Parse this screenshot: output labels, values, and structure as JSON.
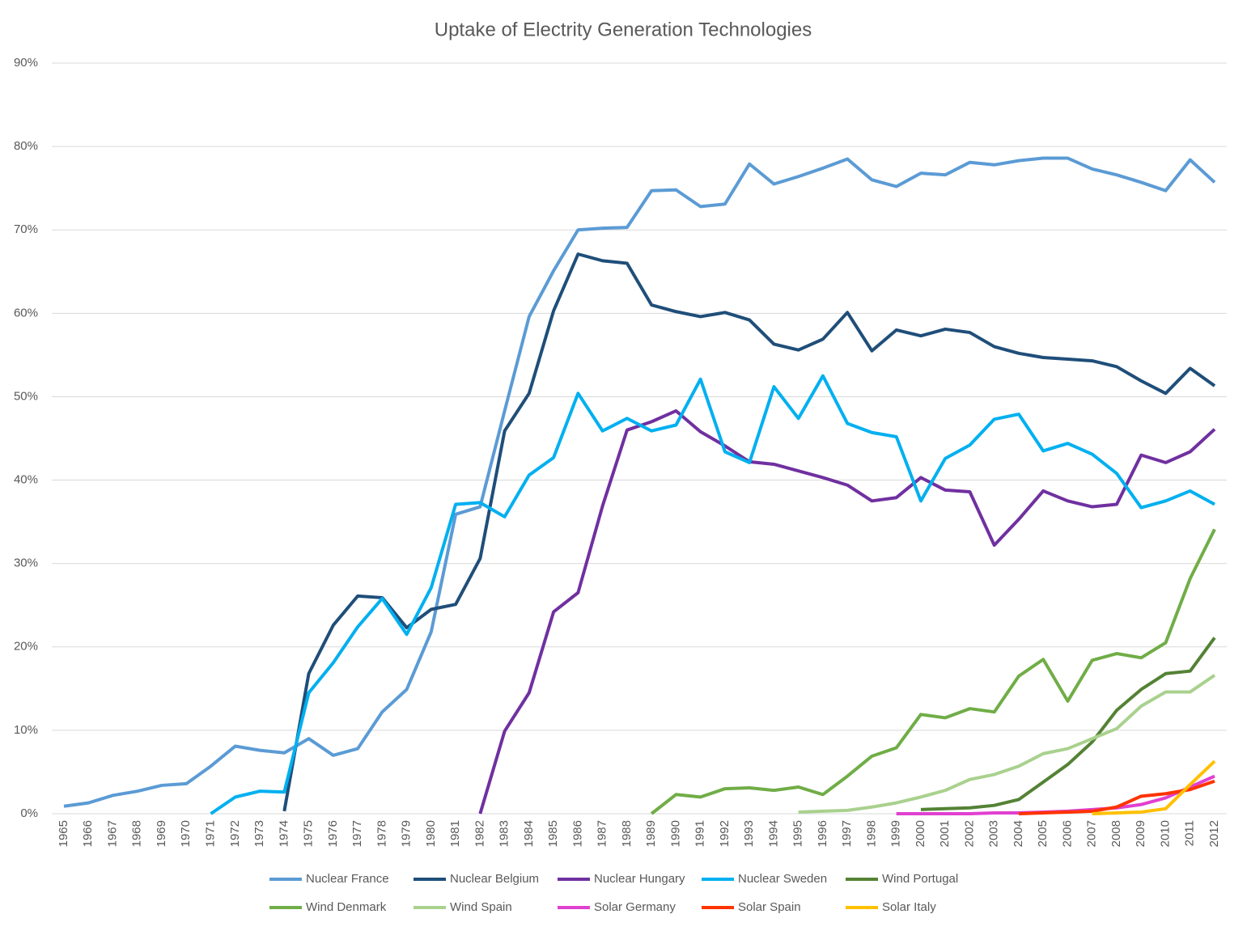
{
  "chart_data": {
    "type": "line",
    "title": "Uptake of Electrity Generation Technologies",
    "categories": [
      "1965",
      "1966",
      "1967",
      "1968",
      "1969",
      "1970",
      "1971",
      "1972",
      "1973",
      "1974",
      "1975",
      "1976",
      "1977",
      "1978",
      "1979",
      "1980",
      "1981",
      "1982",
      "1983",
      "1984",
      "1985",
      "1986",
      "1987",
      "1988",
      "1989",
      "1990",
      "1991",
      "1992",
      "1993",
      "1994",
      "1995",
      "1996",
      "1997",
      "1998",
      "1999",
      "2000",
      "2001",
      "2002",
      "2003",
      "2004",
      "2005",
      "2006",
      "2007",
      "2008",
      "2009",
      "2010",
      "2011",
      "2012"
    ],
    "ylim": [
      0,
      90
    ],
    "yticks": [
      {
        "value": 0,
        "label": "0%"
      },
      {
        "value": 10,
        "label": "10%"
      },
      {
        "value": 20,
        "label": "20%"
      },
      {
        "value": 30,
        "label": "30%"
      },
      {
        "value": 40,
        "label": "40%"
      },
      {
        "value": 50,
        "label": "50%"
      },
      {
        "value": 60,
        "label": "60%"
      },
      {
        "value": 70,
        "label": "70%"
      },
      {
        "value": 80,
        "label": "80%"
      },
      {
        "value": 90,
        "label": "90%"
      }
    ],
    "grid": true,
    "legend": "bottom",
    "series": [
      {
        "name": "Nuclear France",
        "color": "#5b9bd5",
        "values": [
          0.9,
          1.3,
          2.2,
          2.7,
          3.4,
          3.6,
          5.7,
          8.1,
          7.6,
          7.3,
          9.0,
          7.0,
          7.8,
          12.2,
          14.9,
          21.8,
          35.9,
          36.8,
          48.3,
          59.6,
          65.1,
          70.0,
          70.2,
          70.3,
          74.7,
          74.8,
          72.8,
          73.1,
          77.9,
          75.5,
          76.4,
          77.4,
          78.5,
          76.0,
          75.2,
          76.8,
          76.6,
          78.1,
          77.8,
          78.3,
          78.6,
          78.6,
          77.3,
          76.6,
          75.7,
          74.7,
          78.4,
          75.7
        ]
      },
      {
        "name": "Nuclear Belgium",
        "color": "#1f4e79",
        "values": [
          null,
          null,
          null,
          null,
          null,
          null,
          null,
          null,
          null,
          0.3,
          16.8,
          22.6,
          26.1,
          25.9,
          22.3,
          24.5,
          25.1,
          30.6,
          45.9,
          50.4,
          60.3,
          67.1,
          66.3,
          66.0,
          61.0,
          60.2,
          59.6,
          60.1,
          59.2,
          56.3,
          55.6,
          56.9,
          60.1,
          55.5,
          58.0,
          57.3,
          58.1,
          57.7,
          56.0,
          55.2,
          54.7,
          54.5,
          54.3,
          53.6,
          51.9,
          50.4,
          53.4,
          51.3
        ]
      },
      {
        "name": "Nuclear Hungary",
        "color": "#7030a0",
        "values": [
          null,
          null,
          null,
          null,
          null,
          null,
          null,
          null,
          null,
          null,
          null,
          null,
          null,
          null,
          null,
          null,
          null,
          0,
          9.9,
          14.5,
          24.2,
          26.5,
          36.9,
          46.0,
          47.0,
          48.3,
          45.8,
          44.1,
          42.2,
          41.9,
          41.1,
          40.3,
          39.4,
          37.5,
          37.9,
          40.3,
          38.8,
          38.6,
          32.2,
          35.3,
          38.7,
          37.5,
          36.8,
          37.1,
          43.0,
          42.1,
          43.4,
          46.1
        ]
      },
      {
        "name": "Nuclear Sweden",
        "color": "#00b0f0",
        "values": [
          null,
          null,
          null,
          null,
          null,
          null,
          0,
          2.0,
          2.7,
          2.6,
          14.5,
          18.1,
          22.4,
          25.8,
          21.5,
          27.1,
          37.1,
          37.3,
          35.6,
          40.6,
          42.7,
          50.4,
          45.9,
          47.4,
          45.9,
          46.6,
          52.1,
          43.4,
          42.1,
          51.2,
          47.4,
          52.5,
          46.8,
          45.7,
          45.2,
          37.5,
          42.6,
          44.2,
          47.3,
          47.9,
          43.5,
          44.4,
          43.1,
          40.8,
          36.7,
          37.5,
          38.7,
          37.1
        ]
      },
      {
        "name": "Wind Portugal",
        "color": "#548235",
        "values": [
          null,
          null,
          null,
          null,
          null,
          null,
          null,
          null,
          null,
          null,
          null,
          null,
          null,
          null,
          null,
          null,
          null,
          null,
          null,
          null,
          null,
          null,
          null,
          null,
          null,
          null,
          null,
          null,
          null,
          null,
          null,
          null,
          null,
          null,
          null,
          0.5,
          0.6,
          0.7,
          1.0,
          1.7,
          3.8,
          5.9,
          8.6,
          12.4,
          14.9,
          16.8,
          17.1,
          21.1
        ]
      },
      {
        "name": "Wind Denmark",
        "color": "#70ad47",
        "values": [
          null,
          null,
          null,
          null,
          null,
          null,
          null,
          null,
          null,
          null,
          null,
          null,
          null,
          null,
          null,
          null,
          null,
          null,
          null,
          null,
          null,
          null,
          null,
          null,
          0,
          2.3,
          2.0,
          3.0,
          3.1,
          2.8,
          3.2,
          2.3,
          4.5,
          6.9,
          7.9,
          11.9,
          11.5,
          12.6,
          12.2,
          16.5,
          18.5,
          13.5,
          18.4,
          19.2,
          18.7,
          20.5,
          28.2,
          34.1
        ]
      },
      {
        "name": "Wind Spain",
        "color": "#a9d18e",
        "values": [
          null,
          null,
          null,
          null,
          null,
          null,
          null,
          null,
          null,
          null,
          null,
          null,
          null,
          null,
          null,
          null,
          null,
          null,
          null,
          null,
          null,
          null,
          null,
          null,
          null,
          null,
          null,
          null,
          null,
          null,
          0.2,
          0.3,
          0.4,
          0.8,
          1.3,
          2.0,
          2.8,
          4.1,
          4.7,
          5.7,
          7.2,
          7.8,
          9.0,
          10.2,
          12.9,
          14.6,
          14.6,
          16.6
        ]
      },
      {
        "name": "Solar Germany",
        "color": "#e040d0",
        "values": [
          null,
          null,
          null,
          null,
          null,
          null,
          null,
          null,
          null,
          null,
          null,
          null,
          null,
          null,
          null,
          null,
          null,
          null,
          null,
          null,
          null,
          null,
          null,
          null,
          null,
          null,
          null,
          null,
          null,
          null,
          null,
          null,
          null,
          null,
          0,
          0,
          0,
          0,
          0.1,
          0.1,
          0.2,
          0.3,
          0.5,
          0.7,
          1.1,
          1.9,
          3.2,
          4.5
        ]
      },
      {
        "name": "Solar Spain",
        "color": "#ff3300",
        "values": [
          null,
          null,
          null,
          null,
          null,
          null,
          null,
          null,
          null,
          null,
          null,
          null,
          null,
          null,
          null,
          null,
          null,
          null,
          null,
          null,
          null,
          null,
          null,
          null,
          null,
          null,
          null,
          null,
          null,
          null,
          null,
          null,
          null,
          null,
          null,
          null,
          null,
          null,
          null,
          0,
          0.1,
          0.2,
          0.3,
          0.8,
          2.1,
          2.4,
          2.9,
          3.9
        ]
      },
      {
        "name": "Solar Italy",
        "color": "#ffc000",
        "values": [
          null,
          null,
          null,
          null,
          null,
          null,
          null,
          null,
          null,
          null,
          null,
          null,
          null,
          null,
          null,
          null,
          null,
          null,
          null,
          null,
          null,
          null,
          null,
          null,
          null,
          null,
          null,
          null,
          null,
          null,
          null,
          null,
          null,
          null,
          null,
          null,
          null,
          null,
          null,
          null,
          null,
          null,
          0,
          0.1,
          0.2,
          0.6,
          3.5,
          6.3
        ]
      }
    ]
  }
}
